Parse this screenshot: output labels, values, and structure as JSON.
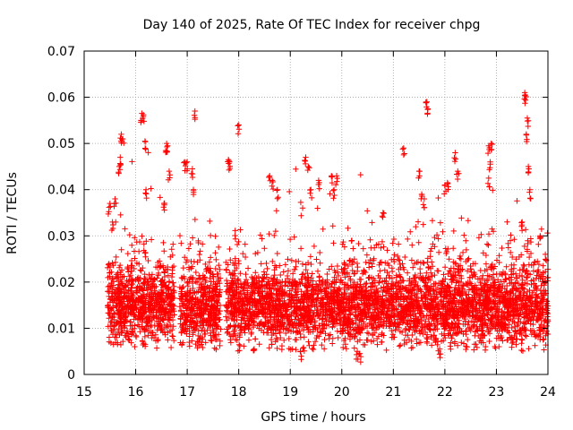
{
  "chart_data": {
    "type": "scatter",
    "title": "Day 140 of 2025, Rate Of TEC Index for receiver chpg",
    "xlabel": "GPS time / hours",
    "ylabel": "ROTI / TECUs",
    "xlim": [
      15,
      24
    ],
    "ylim": [
      0,
      0.07
    ],
    "xticks": [
      "15",
      "16",
      "17",
      "18",
      "19",
      "20",
      "21",
      "22",
      "23",
      "24"
    ],
    "yticks": [
      "0",
      "0.01",
      "0.02",
      "0.03",
      "0.04",
      "0.05",
      "0.06",
      "0.07"
    ],
    "grid": true,
    "marker": "+",
    "marker_color": "#ff0000",
    "gaps": [
      [
        15.0,
        15.45
      ],
      [
        16.75,
        16.85
      ],
      [
        17.65,
        17.75
      ]
    ],
    "series": [
      {
        "name": "ROTI",
        "color": "#ff0000",
        "points": [
          [
            15.72,
            0.052
          ],
          [
            15.75,
            0.051
          ],
          [
            15.7,
            0.047
          ],
          [
            15.68,
            0.045
          ],
          [
            15.5,
            0.037
          ],
          [
            15.55,
            0.033
          ],
          [
            15.6,
            0.038
          ],
          [
            16.12,
            0.0565
          ],
          [
            16.15,
            0.0562
          ],
          [
            16.18,
            0.0505
          ],
          [
            16.2,
            0.04
          ],
          [
            16.6,
            0.05
          ],
          [
            16.62,
            0.0495
          ],
          [
            16.65,
            0.044
          ],
          [
            16.55,
            0.037
          ],
          [
            16.95,
            0.046
          ],
          [
            17.0,
            0.046
          ],
          [
            17.1,
            0.0445
          ],
          [
            17.15,
            0.057
          ],
          [
            17.12,
            0.04
          ],
          [
            17.8,
            0.0465
          ],
          [
            17.82,
            0.046
          ],
          [
            18.0,
            0.054
          ],
          [
            18.6,
            0.043
          ],
          [
            18.65,
            0.042
          ],
          [
            18.75,
            0.04
          ],
          [
            19.3,
            0.047
          ],
          [
            19.35,
            0.045
          ],
          [
            19.4,
            0.04
          ],
          [
            19.55,
            0.042
          ],
          [
            19.8,
            0.043
          ],
          [
            19.9,
            0.043
          ],
          [
            19.85,
            0.04
          ],
          [
            20.8,
            0.035
          ],
          [
            21.2,
            0.049
          ],
          [
            21.5,
            0.044
          ],
          [
            21.55,
            0.039
          ],
          [
            21.6,
            0.038
          ],
          [
            21.65,
            0.059
          ],
          [
            21.67,
            0.0575
          ],
          [
            22.0,
            0.041
          ],
          [
            22.05,
            0.0415
          ],
          [
            22.2,
            0.048
          ],
          [
            22.25,
            0.044
          ],
          [
            22.85,
            0.0495
          ],
          [
            22.9,
            0.05
          ],
          [
            22.88,
            0.046
          ],
          [
            22.85,
            0.0425
          ],
          [
            23.55,
            0.061
          ],
          [
            23.56,
            0.0605
          ],
          [
            23.6,
            0.0555
          ],
          [
            23.58,
            0.052
          ],
          [
            23.62,
            0.045
          ],
          [
            23.65,
            0.04
          ],
          [
            23.5,
            0.033
          ],
          [
            23.85,
            0.03
          ],
          [
            23.95,
            0.026
          ],
          [
            20.3,
            0.005
          ],
          [
            20.35,
            0.0045
          ],
          [
            18.3,
            0.0055
          ],
          [
            19.2,
            0.005
          ],
          [
            21.9,
            0.0055
          ]
        ]
      }
    ]
  }
}
